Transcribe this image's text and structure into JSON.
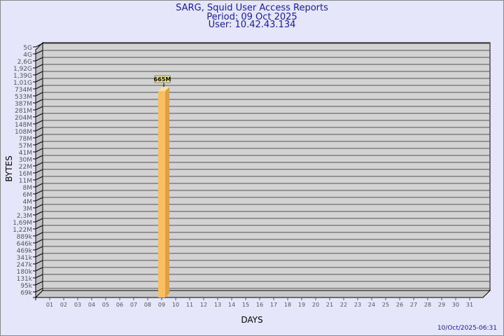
{
  "chart_data": {
    "type": "bar",
    "title": "SARG, Squid User Access Reports",
    "subtitle": [
      "Period: 09 Oct 2025",
      "User: 10.42.43.134"
    ],
    "xlabel": "DAYS",
    "ylabel": "BYTES",
    "categories": [
      "01",
      "02",
      "03",
      "04",
      "05",
      "06",
      "07",
      "08",
      "09",
      "10",
      "11",
      "12",
      "13",
      "14",
      "15",
      "16",
      "17",
      "18",
      "19",
      "20",
      "21",
      "22",
      "23",
      "24",
      "25",
      "26",
      "27",
      "28",
      "29",
      "30",
      "31"
    ],
    "y_tick_labels": [
      "5G",
      "4G",
      "2,6G",
      "1,92G",
      "1,39G",
      "1,01G",
      "734M",
      "533M",
      "387M",
      "281M",
      "204M",
      "148M",
      "108M",
      "78M",
      "57M",
      "41M",
      "30M",
      "22M",
      "16M",
      "11M",
      "8M",
      "6M",
      "4M",
      "3M",
      "2,3M",
      "1,69M",
      "1,22M",
      "889k",
      "646k",
      "469k",
      "341k",
      "247k",
      "180k",
      "131k",
      "95k",
      "69k"
    ],
    "y_tick_values": [
      5000,
      4000,
      2600,
      1920,
      1390,
      1010,
      734,
      533,
      387,
      281,
      204,
      148,
      108,
      78,
      57,
      41,
      30,
      22,
      16,
      11,
      8,
      6,
      4,
      3,
      2.3,
      1.69,
      1.22,
      0.889,
      0.646,
      0.469,
      0.341,
      0.247,
      0.18,
      0.131,
      0.095,
      0.069
    ],
    "y_unit": "MB",
    "y_scale": "log",
    "bars": [
      {
        "category": "09",
        "value": 665,
        "label": "665M"
      }
    ],
    "grid": true,
    "bar_color": "#f8c060",
    "footer": "10/Oct/2025-06:31"
  }
}
